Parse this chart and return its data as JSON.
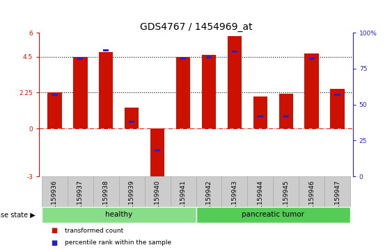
{
  "title": "GDS4767 / 1454969_at",
  "samples": [
    "GSM1159936",
    "GSM1159937",
    "GSM1159938",
    "GSM1159939",
    "GSM1159940",
    "GSM1159941",
    "GSM1159942",
    "GSM1159943",
    "GSM1159944",
    "GSM1159945",
    "GSM1159946",
    "GSM1159947"
  ],
  "transformed_count": [
    2.25,
    4.5,
    4.8,
    1.3,
    -3.0,
    4.5,
    4.6,
    5.8,
    2.0,
    2.2,
    4.7,
    2.5
  ],
  "percentile_rank": [
    57,
    82,
    88,
    38,
    18,
    82,
    83,
    87,
    42,
    42,
    82,
    57
  ],
  "ylim_left": [
    -3,
    6
  ],
  "ylim_right": [
    0,
    100
  ],
  "yticks_left": [
    -3,
    0,
    2.25,
    4.5,
    6
  ],
  "ytick_labels_left": [
    "-3",
    "0",
    "2.25",
    "4.5",
    "6"
  ],
  "yticks_right": [
    0,
    25,
    50,
    75,
    100
  ],
  "ytick_labels_right": [
    "0",
    "25",
    "50",
    "75",
    "100%"
  ],
  "hlines": [
    2.25,
    4.5
  ],
  "bar_color": "#cc1100",
  "dot_color": "#2222cc",
  "bar_width": 0.55,
  "groups": [
    {
      "label": "healthy",
      "indices": [
        0,
        1,
        2,
        3,
        4,
        5
      ],
      "color": "#88dd88"
    },
    {
      "label": "pancreatic tumor",
      "indices": [
        6,
        7,
        8,
        9,
        10,
        11
      ],
      "color": "#55cc55"
    }
  ],
  "disease_state_label": "disease state",
  "legend_items": [
    {
      "color": "#cc1100",
      "label": "transformed count"
    },
    {
      "color": "#2222cc",
      "label": "percentile rank within the sample"
    }
  ],
  "title_fontsize": 10,
  "tick_fontsize": 6.5,
  "label_fontsize": 7.5,
  "xticklabel_bg": "#cccccc",
  "xticklabel_border": "#aaaaaa"
}
